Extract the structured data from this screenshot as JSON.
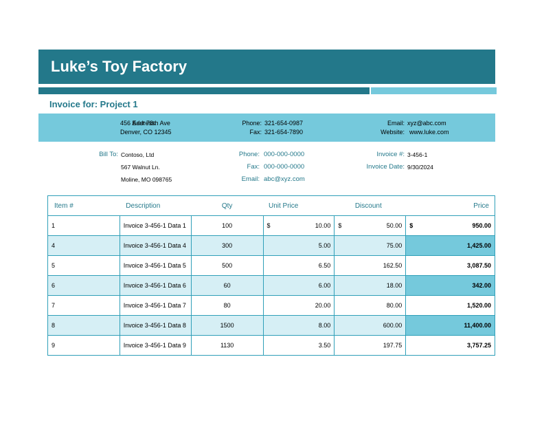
{
  "company": "Luke’s Toy Factory",
  "invoice_for": "Invoice for: Project 1",
  "company_info": {
    "address_label": "Address:",
    "address_line1": "456 East 78th Ave",
    "address_line2": "Denver, CO 12345",
    "phone_label": "Phone:",
    "phone": "321-654-0987",
    "fax_label": "Fax:",
    "fax": "321-654-7890",
    "email_label": "Email:",
    "email": "xyz@abc.com",
    "website_label": "Website:",
    "website": "www.luke.com"
  },
  "bill_to": {
    "label": "Bill To:",
    "name": "Contoso, Ltd",
    "street": "567 Walnut Ln.",
    "city": "Moline, MO 098765",
    "phone_label": "Phone:",
    "phone": "000-000-0000",
    "fax_label": "Fax:",
    "fax": "000-000-0000",
    "email_label": "Email:",
    "email": "abc@xyz.com",
    "invoice_no_label": "Invoice #:",
    "invoice_no": "3-456-1",
    "invoice_date_label": "Invoice Date:",
    "invoice_date": "9/30/2024"
  },
  "table": {
    "headers": [
      "Item #",
      "Description",
      "Qty",
      "Unit Price",
      "Discount",
      "Price"
    ],
    "currency": "$",
    "rows": [
      {
        "item": "1",
        "desc": "Invoice 3-456-1 Data 1",
        "qty": "100",
        "unit": "10.00",
        "discount": "50.00",
        "price": "950.00"
      },
      {
        "item": "4",
        "desc": "Invoice 3-456-1 Data 4",
        "qty": "300",
        "unit": "5.00",
        "discount": "75.00",
        "price": "1,425.00"
      },
      {
        "item": "5",
        "desc": "Invoice 3-456-1 Data 5",
        "qty": "500",
        "unit": "6.50",
        "discount": "162.50",
        "price": "3,087.50"
      },
      {
        "item": "6",
        "desc": "Invoice 3-456-1 Data 6",
        "qty": "60",
        "unit": "6.00",
        "discount": "18.00",
        "price": "342.00"
      },
      {
        "item": "7",
        "desc": "Invoice 3-456-1 Data 7",
        "qty": "80",
        "unit": "20.00",
        "discount": "80.00",
        "price": "1,520.00"
      },
      {
        "item": "8",
        "desc": "Invoice 3-456-1 Data 8",
        "qty": "1500",
        "unit": "8.00",
        "discount": "600.00",
        "price": "11,400.00"
      },
      {
        "item": "9",
        "desc": "Invoice 3-456-1 Data 9",
        "qty": "1130",
        "unit": "3.50",
        "discount": "197.75",
        "price": "3,757.25"
      }
    ]
  },
  "colors": {
    "primary": "#23788a",
    "accent": "#75c9dc",
    "row_alt": "#d6eff5"
  }
}
